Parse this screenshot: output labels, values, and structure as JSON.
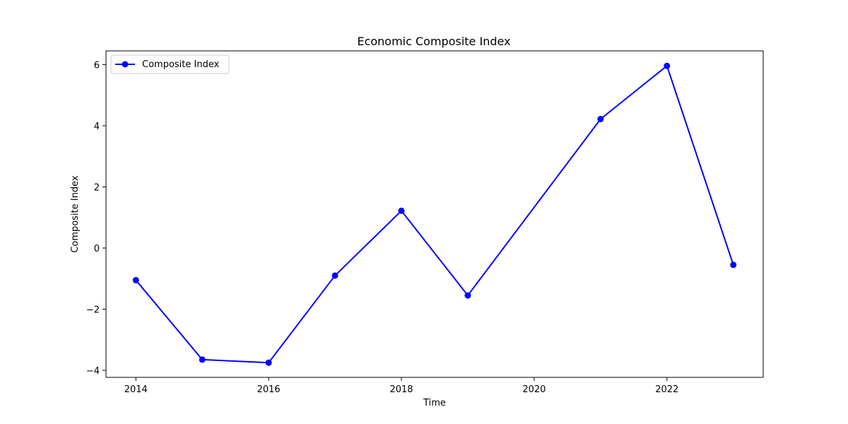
{
  "chart_data": {
    "type": "line",
    "title": "Economic Composite Index",
    "xlabel": "Time",
    "ylabel": "Composite Index",
    "x": [
      2014,
      2015,
      2016,
      2017,
      2018,
      2019,
      2021,
      2022,
      2023
    ],
    "series": [
      {
        "name": "Composite Index",
        "values": [
          -1.05,
          -3.65,
          -3.75,
          -0.9,
          1.22,
          -1.55,
          4.22,
          5.96,
          -0.55
        ],
        "color": "#0000ff",
        "marker": "circle"
      }
    ],
    "xlim": [
      2013.55,
      2023.45
    ],
    "ylim": [
      -4.23,
      6.45
    ],
    "xticks": [
      2014,
      2016,
      2018,
      2020,
      2022
    ],
    "yticks": [
      -4,
      -2,
      0,
      2,
      4,
      6
    ],
    "ytick_labels": [
      "−4",
      "−2",
      "0",
      "2",
      "4",
      "6"
    ],
    "grid": false,
    "legend_position": "top-left"
  }
}
